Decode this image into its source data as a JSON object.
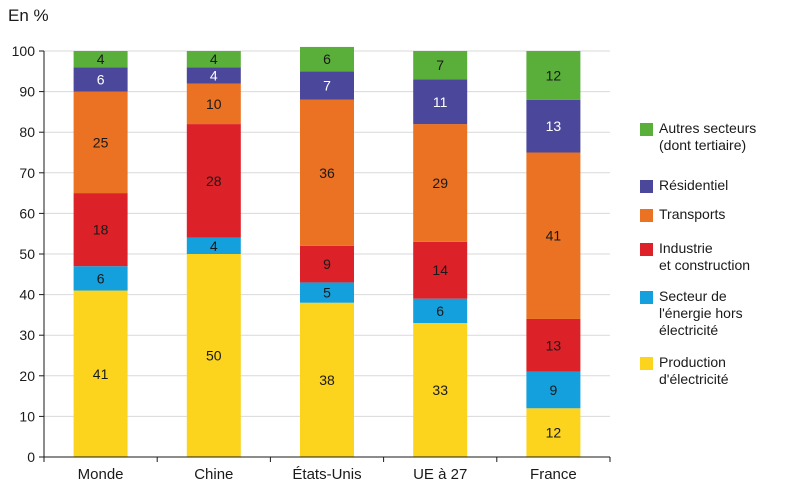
{
  "chart_data": {
    "type": "bar",
    "stacked": true,
    "unit_label": "En %",
    "categories": [
      "Monde",
      "Chine",
      "États-Unis",
      "UE à 27",
      "France"
    ],
    "ylim": [
      0,
      100
    ],
    "yticks": [
      0,
      10,
      20,
      30,
      40,
      50,
      60,
      70,
      80,
      90,
      100
    ],
    "series": [
      {
        "name": "Production d'électricité",
        "legend_lines": [
          "Production",
          "d'électricité"
        ],
        "color": "#fcd41e",
        "values": [
          41,
          50,
          38,
          33,
          12
        ]
      },
      {
        "name": "Secteur de l'énergie hors électricité",
        "legend_lines": [
          "Secteur de",
          "l'énergie hors",
          "électricité"
        ],
        "color": "#14a0dc",
        "values": [
          6,
          4,
          5,
          6,
          9
        ]
      },
      {
        "name": "Industrie et construction",
        "legend_lines": [
          "Industrie",
          "et construction"
        ],
        "color": "#dc2128",
        "values": [
          18,
          28,
          9,
          14,
          13
        ]
      },
      {
        "name": "Transports",
        "legend_lines": [
          "Transports"
        ],
        "color": "#eb7123",
        "values": [
          25,
          10,
          36,
          29,
          41
        ]
      },
      {
        "name": "Résidentiel",
        "legend_lines": [
          "Résidentiel"
        ],
        "color": "#4b479b",
        "values": [
          6,
          4,
          7,
          11,
          13
        ]
      },
      {
        "name": "Autres secteurs (dont tertiaire)",
        "legend_lines": [
          "Autres secteurs",
          "(dont tertiaire)"
        ],
        "color": "#5aae3a",
        "values": [
          4,
          4,
          6,
          7,
          12
        ]
      }
    ],
    "legend_position": "right",
    "label_color_light": "#ffffff",
    "label_color_dark": "#1a1a1a"
  }
}
